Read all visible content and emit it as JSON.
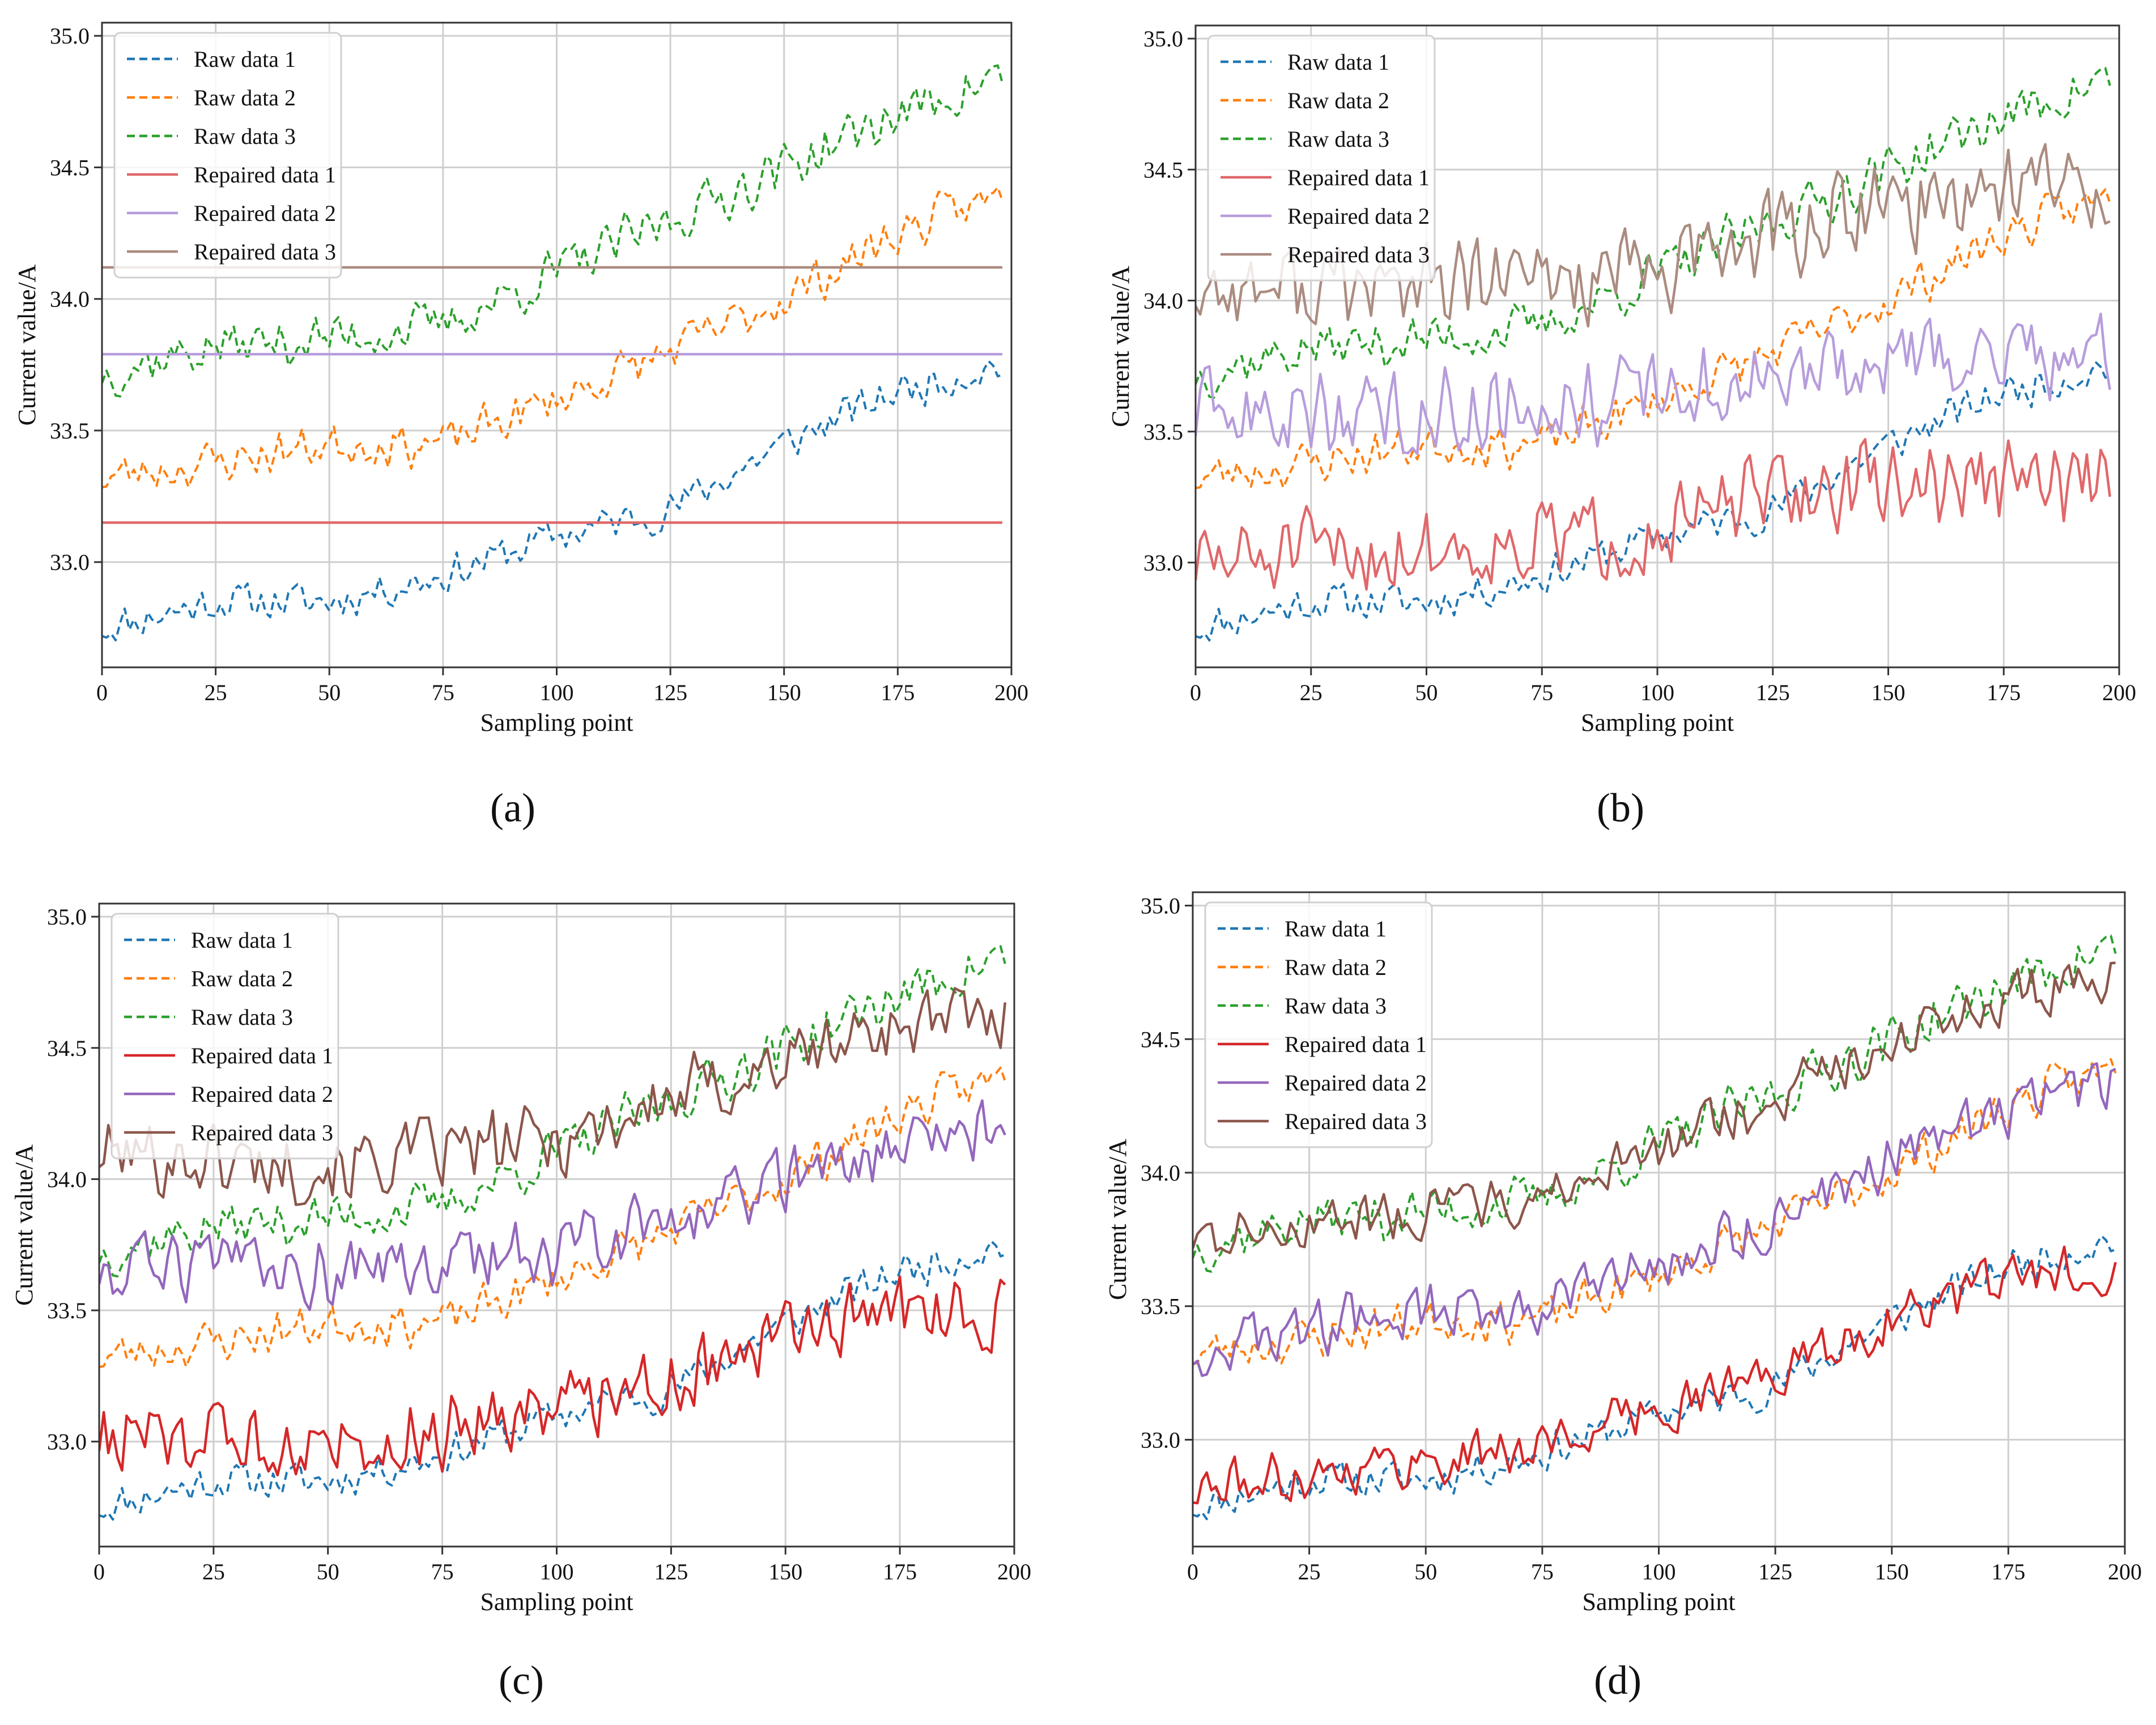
{
  "figure": {
    "panel_labels": [
      "(a)",
      "(b)",
      "(c)",
      "(d)"
    ]
  },
  "colors": {
    "raw1": "#1f77b4",
    "raw2": "#ff7f0e",
    "raw3": "#2ca02c",
    "rep_a1": "#e0686a",
    "rep_a2": "#b79ddc",
    "rep_a3": "#ab8c80",
    "rep_c1": "#d62728",
    "rep_c2": "#9467bd",
    "rep_c3": "#8c564b"
  },
  "chart_data": [
    {
      "type": "line",
      "panel": "(a)",
      "title": "",
      "xlabel": "Sampling point",
      "ylabel": "Current value/A",
      "xlim": [
        0,
        200
      ],
      "ylim": [
        32.6,
        35.05
      ],
      "xticks": [
        "0",
        "25",
        "50",
        "75",
        "100",
        "125",
        "150",
        "175",
        "200"
      ],
      "yticks": [
        "33.0",
        "33.5",
        "34.0",
        "34.5",
        "35.0"
      ],
      "grid": true,
      "legend_position": "top-left",
      "series": [
        {
          "name": "Raw data 1",
          "style": "dashed",
          "trend": [
            [
              0,
              32.75
            ],
            [
              25,
              32.85
            ],
            [
              50,
              32.85
            ],
            [
              75,
              32.95
            ],
            [
              100,
              33.1
            ],
            [
              125,
              33.2
            ],
            [
              150,
              33.45
            ],
            [
              175,
              33.65
            ],
            [
              198,
              33.75
            ]
          ],
          "noise": 0.06,
          "seed": 11
        },
        {
          "name": "Raw data 2",
          "style": "dashed",
          "trend": [
            [
              0,
              33.32
            ],
            [
              25,
              33.38
            ],
            [
              50,
              33.45
            ],
            [
              75,
              33.45
            ],
            [
              100,
              33.62
            ],
            [
              125,
              33.8
            ],
            [
              150,
              34.0
            ],
            [
              175,
              34.25
            ],
            [
              198,
              34.4
            ]
          ],
          "noise": 0.07,
          "seed": 23
        },
        {
          "name": "Raw data 3",
          "style": "dashed",
          "trend": [
            [
              0,
              33.72
            ],
            [
              25,
              33.82
            ],
            [
              50,
              33.85
            ],
            [
              75,
              33.9
            ],
            [
              100,
              34.1
            ],
            [
              125,
              34.3
            ],
            [
              150,
              34.5
            ],
            [
              175,
              34.7
            ],
            [
              198,
              34.85
            ]
          ],
          "noise": 0.08,
          "seed": 37
        },
        {
          "name": "Repaired data 1",
          "style": "solid",
          "constant": 33.15
        },
        {
          "name": "Repaired data 2",
          "style": "solid",
          "constant": 33.79
        },
        {
          "name": "Repaired data 3",
          "style": "solid",
          "constant": 34.12
        }
      ]
    },
    {
      "type": "line",
      "panel": "(b)",
      "title": "",
      "xlabel": "Sampling point",
      "ylabel": "Current value/A",
      "xlim": [
        0,
        200
      ],
      "ylim": [
        32.6,
        35.05
      ],
      "xticks": [
        "0",
        "25",
        "50",
        "75",
        "100",
        "125",
        "150",
        "175",
        "200"
      ],
      "yticks": [
        "33.0",
        "33.5",
        "34.0",
        "34.5",
        "35.0"
      ],
      "grid": true,
      "legend_position": "top-left",
      "series": [
        {
          "name": "Raw data 1",
          "style": "dashed",
          "trend": [
            [
              0,
              32.75
            ],
            [
              25,
              32.85
            ],
            [
              50,
              32.85
            ],
            [
              75,
              32.95
            ],
            [
              100,
              33.1
            ],
            [
              125,
              33.2
            ],
            [
              150,
              33.45
            ],
            [
              175,
              33.65
            ],
            [
              198,
              33.75
            ]
          ],
          "noise": 0.06,
          "seed": 11
        },
        {
          "name": "Raw data 2",
          "style": "dashed",
          "trend": [
            [
              0,
              33.32
            ],
            [
              25,
              33.38
            ],
            [
              50,
              33.45
            ],
            [
              75,
              33.45
            ],
            [
              100,
              33.62
            ],
            [
              125,
              33.8
            ],
            [
              150,
              34.0
            ],
            [
              175,
              34.25
            ],
            [
              198,
              34.4
            ]
          ],
          "noise": 0.07,
          "seed": 23
        },
        {
          "name": "Raw data 3",
          "style": "dashed",
          "trend": [
            [
              0,
              33.72
            ],
            [
              25,
              33.82
            ],
            [
              50,
              33.85
            ],
            [
              75,
              33.9
            ],
            [
              100,
              34.1
            ],
            [
              125,
              34.3
            ],
            [
              150,
              34.5
            ],
            [
              175,
              34.7
            ],
            [
              198,
              34.85
            ]
          ],
          "noise": 0.08,
          "seed": 37
        },
        {
          "name": "Repaired data 1",
          "style": "solid",
          "trend": [
            [
              0,
              33.0
            ],
            [
              50,
              33.05
            ],
            [
              100,
              33.12
            ],
            [
              125,
              33.25
            ],
            [
              150,
              33.3
            ],
            [
              175,
              33.3
            ],
            [
              198,
              33.3
            ]
          ],
          "noise": 0.14,
          "seed": 51
        },
        {
          "name": "Repaired data 2",
          "style": "solid",
          "trend": [
            [
              0,
              33.55
            ],
            [
              50,
              33.58
            ],
            [
              100,
              33.65
            ],
            [
              125,
              33.7
            ],
            [
              150,
              33.75
            ],
            [
              175,
              33.8
            ],
            [
              198,
              33.8
            ]
          ],
          "noise": 0.14,
          "seed": 63
        },
        {
          "name": "Repaired data 3",
          "style": "solid",
          "trend": [
            [
              0,
              34.05
            ],
            [
              50,
              34.05
            ],
            [
              100,
              34.1
            ],
            [
              125,
              34.25
            ],
            [
              150,
              34.35
            ],
            [
              175,
              34.45
            ],
            [
              198,
              34.45
            ]
          ],
          "noise": 0.15,
          "seed": 77
        }
      ]
    },
    {
      "type": "line",
      "panel": "(c)",
      "title": "",
      "xlabel": "Sampling point",
      "ylabel": "Current value/A",
      "xlim": [
        0,
        200
      ],
      "ylim": [
        32.6,
        35.05
      ],
      "xticks": [
        "0",
        "25",
        "50",
        "75",
        "100",
        "125",
        "150",
        "175",
        "200"
      ],
      "yticks": [
        "33.0",
        "33.5",
        "34.0",
        "34.5",
        "35.0"
      ],
      "grid": true,
      "legend_position": "top-left",
      "series": [
        {
          "name": "Raw data 1",
          "style": "dashed",
          "trend": [
            [
              0,
              32.75
            ],
            [
              25,
              32.85
            ],
            [
              50,
              32.85
            ],
            [
              75,
              32.95
            ],
            [
              100,
              33.1
            ],
            [
              125,
              33.2
            ],
            [
              150,
              33.45
            ],
            [
              175,
              33.65
            ],
            [
              198,
              33.75
            ]
          ],
          "noise": 0.06,
          "seed": 11
        },
        {
          "name": "Raw data 2",
          "style": "dashed",
          "trend": [
            [
              0,
              33.32
            ],
            [
              25,
              33.38
            ],
            [
              50,
              33.45
            ],
            [
              75,
              33.45
            ],
            [
              100,
              33.62
            ],
            [
              125,
              33.8
            ],
            [
              150,
              34.0
            ],
            [
              175,
              34.25
            ],
            [
              198,
              34.4
            ]
          ],
          "noise": 0.07,
          "seed": 23
        },
        {
          "name": "Raw data 3",
          "style": "dashed",
          "trend": [
            [
              0,
              33.72
            ],
            [
              25,
              33.82
            ],
            [
              50,
              33.85
            ],
            [
              75,
              33.9
            ],
            [
              100,
              34.1
            ],
            [
              125,
              34.3
            ],
            [
              150,
              34.5
            ],
            [
              175,
              34.7
            ],
            [
              198,
              34.85
            ]
          ],
          "noise": 0.08,
          "seed": 37
        },
        {
          "name": "Repaired data 1",
          "style": "solid",
          "trend": [
            [
              0,
              33.02
            ],
            [
              50,
              33.0
            ],
            [
              75,
              33.05
            ],
            [
              100,
              33.15
            ],
            [
              125,
              33.25
            ],
            [
              150,
              33.4
            ],
            [
              175,
              33.5
            ],
            [
              198,
              33.5
            ]
          ],
          "noise": 0.12,
          "seed": 85
        },
        {
          "name": "Repaired data 2",
          "style": "solid",
          "trend": [
            [
              0,
              33.65
            ],
            [
              50,
              33.65
            ],
            [
              100,
              33.72
            ],
            [
              125,
              33.85
            ],
            [
              150,
              34.0
            ],
            [
              175,
              34.15
            ],
            [
              198,
              34.2
            ]
          ],
          "noise": 0.11,
          "seed": 93
        },
        {
          "name": "Repaired data 3",
          "style": "solid",
          "trend": [
            [
              0,
              34.1
            ],
            [
              50,
              34.05
            ],
            [
              100,
              34.15
            ],
            [
              125,
              34.3
            ],
            [
              150,
              34.45
            ],
            [
              175,
              34.6
            ],
            [
              198,
              34.6
            ]
          ],
          "noise": 0.12,
          "seed": 101
        }
      ]
    },
    {
      "type": "line",
      "panel": "(d)",
      "title": "",
      "xlabel": "Sampling point",
      "ylabel": "Current value/A",
      "xlim": [
        0,
        200
      ],
      "ylim": [
        32.6,
        35.05
      ],
      "xticks": [
        "0",
        "25",
        "50",
        "75",
        "100",
        "125",
        "150",
        "175",
        "200"
      ],
      "yticks": [
        "33.0",
        "33.5",
        "34.0",
        "34.5",
        "35.0"
      ],
      "grid": true,
      "legend_position": "top-left",
      "series": [
        {
          "name": "Raw data 1",
          "style": "dashed",
          "trend": [
            [
              0,
              32.75
            ],
            [
              25,
              32.85
            ],
            [
              50,
              32.85
            ],
            [
              75,
              32.95
            ],
            [
              100,
              33.1
            ],
            [
              125,
              33.2
            ],
            [
              150,
              33.45
            ],
            [
              175,
              33.65
            ],
            [
              198,
              33.75
            ]
          ],
          "noise": 0.06,
          "seed": 11
        },
        {
          "name": "Raw data 2",
          "style": "dashed",
          "trend": [
            [
              0,
              33.32
            ],
            [
              25,
              33.38
            ],
            [
              50,
              33.45
            ],
            [
              75,
              33.45
            ],
            [
              100,
              33.62
            ],
            [
              125,
              33.8
            ],
            [
              150,
              34.0
            ],
            [
              175,
              34.25
            ],
            [
              198,
              34.4
            ]
          ],
          "noise": 0.07,
          "seed": 23
        },
        {
          "name": "Raw data 3",
          "style": "dashed",
          "trend": [
            [
              0,
              33.72
            ],
            [
              25,
              33.82
            ],
            [
              50,
              33.85
            ],
            [
              75,
              33.9
            ],
            [
              100,
              34.1
            ],
            [
              125,
              34.3
            ],
            [
              150,
              34.5
            ],
            [
              175,
              34.7
            ],
            [
              198,
              34.85
            ]
          ],
          "noise": 0.08,
          "seed": 37
        },
        {
          "name": "Repaired data 1",
          "style": "solid",
          "trend": [
            [
              0,
              32.8
            ],
            [
              25,
              32.88
            ],
            [
              50,
              32.92
            ],
            [
              75,
              32.98
            ],
            [
              100,
              33.12
            ],
            [
              125,
              33.25
            ],
            [
              150,
              33.45
            ],
            [
              175,
              33.6
            ],
            [
              198,
              33.65
            ]
          ],
          "noise": 0.08,
          "seed": 111
        },
        {
          "name": "Repaired data 2",
          "style": "solid",
          "trend": [
            [
              0,
              33.32
            ],
            [
              25,
              33.42
            ],
            [
              50,
              33.48
            ],
            [
              75,
              33.5
            ],
            [
              100,
              33.65
            ],
            [
              125,
              33.82
            ],
            [
              150,
              34.05
            ],
            [
              175,
              34.25
            ],
            [
              198,
              34.35
            ]
          ],
          "noise": 0.09,
          "seed": 123
        },
        {
          "name": "Repaired data 3",
          "style": "solid",
          "trend": [
            [
              0,
              33.75
            ],
            [
              25,
              33.82
            ],
            [
              50,
              33.85
            ],
            [
              75,
              33.9
            ],
            [
              100,
              34.08
            ],
            [
              125,
              34.28
            ],
            [
              150,
              34.5
            ],
            [
              175,
              34.65
            ],
            [
              198,
              34.75
            ]
          ],
          "noise": 0.08,
          "seed": 137
        }
      ]
    }
  ]
}
